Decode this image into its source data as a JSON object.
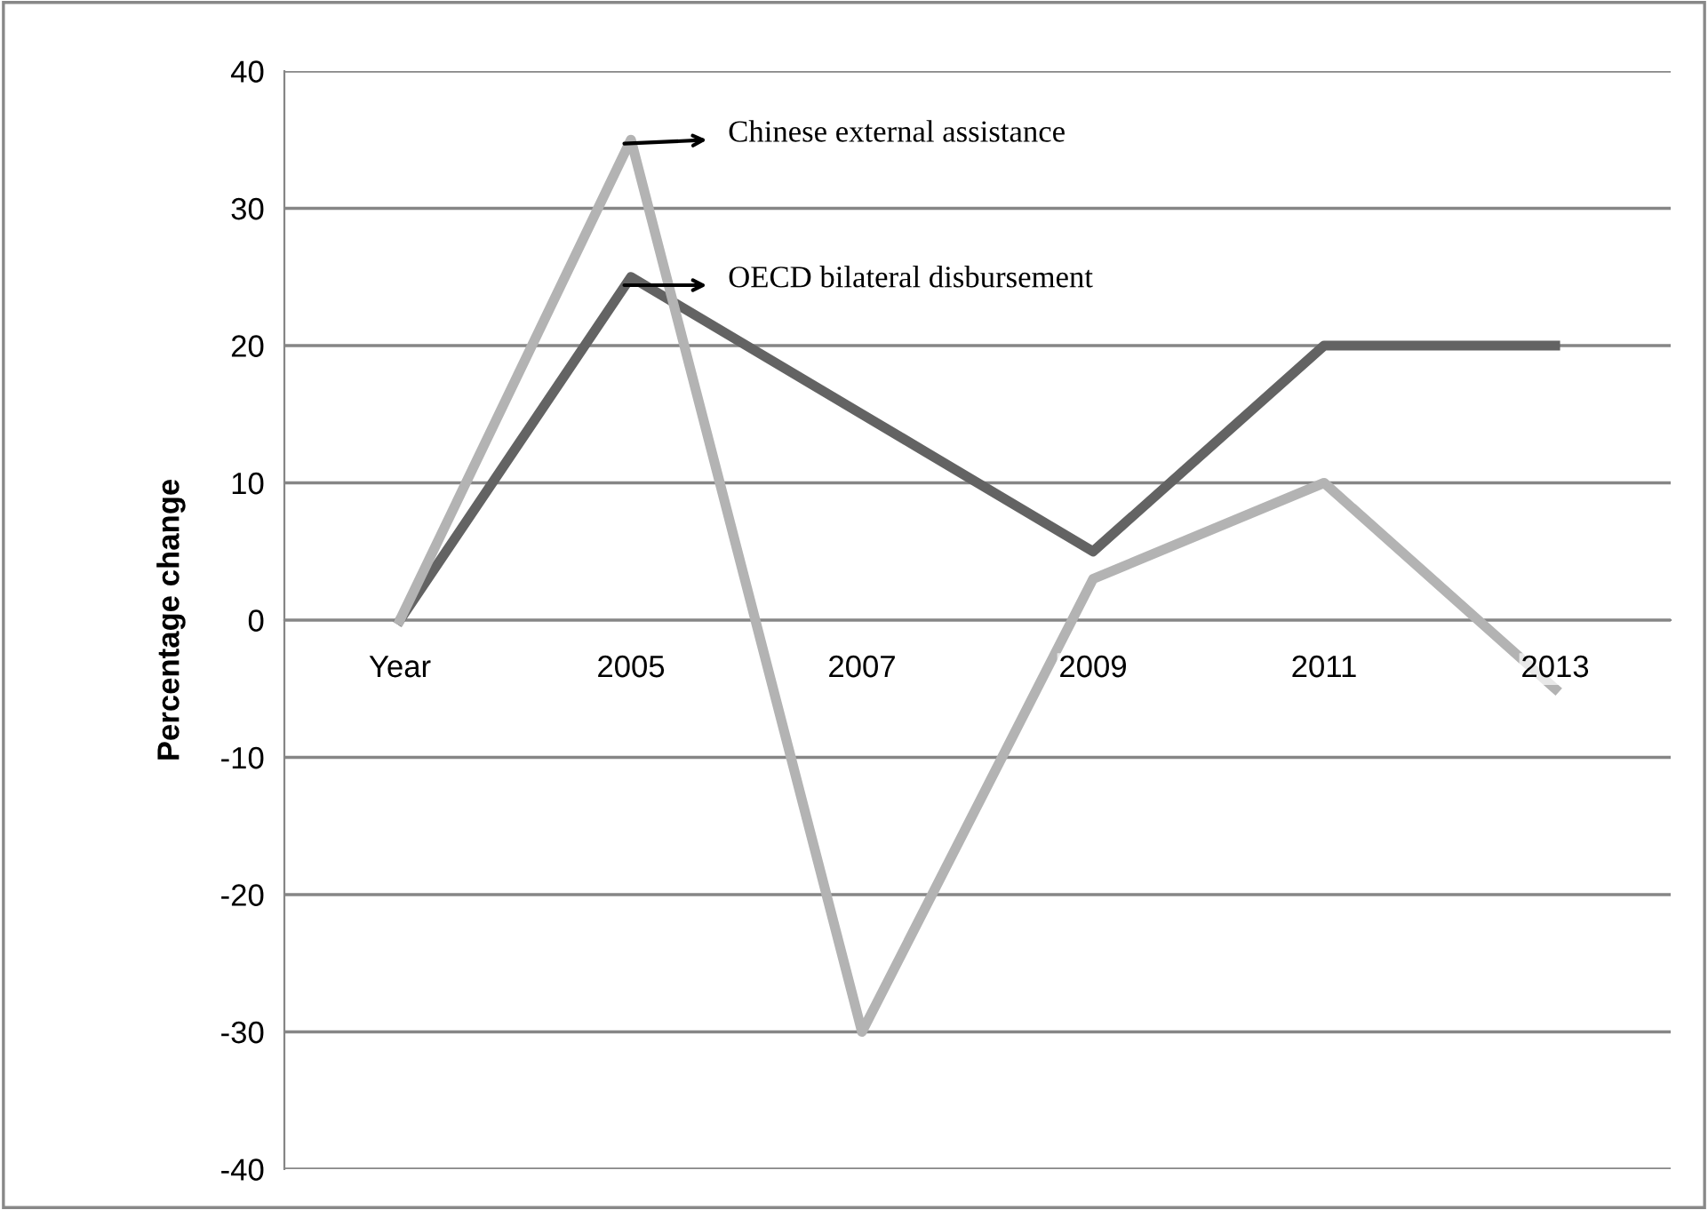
{
  "chart_data": {
    "type": "line",
    "ylabel": "Percentage change",
    "categories": [
      "Year",
      "2005",
      "2007",
      "2009",
      "2011",
      "2013"
    ],
    "series": [
      {
        "name": "Chinese external assistance",
        "color": "#b3b3b3",
        "values": [
          0,
          35,
          -30,
          3,
          10,
          -5
        ]
      },
      {
        "name": "OECD bilateral disbursement",
        "color": "#636363",
        "values": [
          0,
          25,
          15,
          5,
          20,
          20
        ]
      }
    ],
    "ylim": [
      -40,
      40
    ],
    "yticks": [
      -40,
      -30,
      -20,
      -10,
      0,
      10,
      20,
      30,
      40
    ],
    "grid": "y",
    "legend": false,
    "marker": "none",
    "line_style": "solid"
  }
}
